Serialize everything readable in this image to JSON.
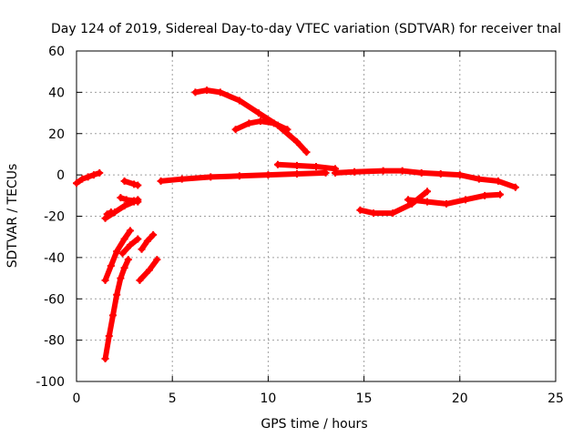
{
  "chart_data": {
    "type": "line",
    "title": "Day 124 of 2019, Sidereal Day-to-day VTEC variation (SDTVAR) for receiver tnal",
    "xlabel": "GPS time / hours",
    "ylabel": "SDTVAR / TECUs",
    "xlim": [
      0,
      25
    ],
    "ylim": [
      -100,
      60
    ],
    "xticks": [
      0,
      5,
      10,
      15,
      20,
      25
    ],
    "yticks": [
      -100,
      -80,
      -60,
      -40,
      -20,
      0,
      20,
      40,
      60
    ],
    "grid": true,
    "legend": "none",
    "series_color": "#ff0000",
    "series": [
      {
        "points": [
          [
            0,
            -4
          ],
          [
            0.3,
            -2
          ],
          [
            0.6,
            -1
          ],
          [
            0.9,
            0
          ],
          [
            1.2,
            1
          ]
        ]
      },
      {
        "points": [
          [
            1.5,
            -21
          ],
          [
            2.0,
            -18
          ],
          [
            2.5,
            -15
          ],
          [
            3.0,
            -13
          ],
          [
            3.2,
            -12
          ]
        ]
      },
      {
        "points": [
          [
            1.6,
            -19
          ],
          [
            1.8,
            -18
          ]
        ]
      },
      {
        "points": [
          [
            2.3,
            -11
          ],
          [
            2.6,
            -12
          ],
          [
            3.0,
            -12.5
          ],
          [
            3.2,
            -13
          ]
        ]
      },
      {
        "points": [
          [
            2.5,
            -3
          ],
          [
            3.0,
            -4.5
          ],
          [
            3.2,
            -5
          ]
        ]
      },
      {
        "points": [
          [
            1.5,
            -51
          ],
          [
            1.8,
            -44
          ],
          [
            2.1,
            -37
          ],
          [
            2.5,
            -31
          ],
          [
            2.8,
            -27
          ]
        ]
      },
      {
        "points": [
          [
            1.5,
            -89
          ],
          [
            1.7,
            -78
          ],
          [
            1.9,
            -68
          ],
          [
            2.1,
            -58
          ],
          [
            2.3,
            -50
          ],
          [
            2.5,
            -45
          ],
          [
            2.7,
            -41
          ]
        ]
      },
      {
        "points": [
          [
            2.4,
            -38
          ],
          [
            2.8,
            -34
          ],
          [
            3.2,
            -31
          ]
        ]
      },
      {
        "points": [
          [
            3.4,
            -36
          ],
          [
            3.7,
            -32
          ],
          [
            4.0,
            -29
          ]
        ]
      },
      {
        "points": [
          [
            3.3,
            -51
          ],
          [
            3.8,
            -46
          ],
          [
            4.2,
            -41
          ]
        ]
      },
      {
        "points": [
          [
            4.4,
            -3
          ],
          [
            5.5,
            -2
          ],
          [
            7.0,
            -1
          ],
          [
            8.5,
            -0.5
          ],
          [
            10.0,
            0
          ],
          [
            11.5,
            0.5
          ],
          [
            13.0,
            1
          ]
        ]
      },
      {
        "points": [
          [
            10.5,
            5
          ],
          [
            11.5,
            4.5
          ],
          [
            12.5,
            4
          ],
          [
            13.5,
            3
          ]
        ]
      },
      {
        "points": [
          [
            13.5,
            1
          ],
          [
            14.5,
            1.5
          ],
          [
            16.0,
            2
          ],
          [
            17.0,
            2
          ],
          [
            18.0,
            1
          ],
          [
            19.0,
            0.5
          ],
          [
            20.0,
            0
          ],
          [
            21.0,
            -2
          ],
          [
            22.0,
            -3
          ],
          [
            22.9,
            -6
          ]
        ]
      },
      {
        "points": [
          [
            6.2,
            40
          ],
          [
            6.8,
            41
          ],
          [
            7.5,
            40
          ],
          [
            8.5,
            36
          ],
          [
            9.5,
            30
          ],
          [
            10.5,
            24
          ],
          [
            11.5,
            16
          ],
          [
            12.0,
            11
          ]
        ]
      },
      {
        "points": [
          [
            8.3,
            22
          ],
          [
            9.0,
            25
          ],
          [
            9.6,
            26
          ],
          [
            10.3,
            25
          ],
          [
            11.0,
            22
          ]
        ]
      },
      {
        "points": [
          [
            14.8,
            -17
          ],
          [
            15.5,
            -18.5
          ],
          [
            16.5,
            -18.5
          ],
          [
            17.5,
            -14
          ],
          [
            18.3,
            -8
          ]
        ]
      },
      {
        "points": [
          [
            17.3,
            -12
          ],
          [
            18.3,
            -13
          ],
          [
            19.3,
            -14
          ],
          [
            20.3,
            -12
          ],
          [
            21.3,
            -10
          ],
          [
            22.1,
            -9.5
          ]
        ]
      }
    ]
  }
}
